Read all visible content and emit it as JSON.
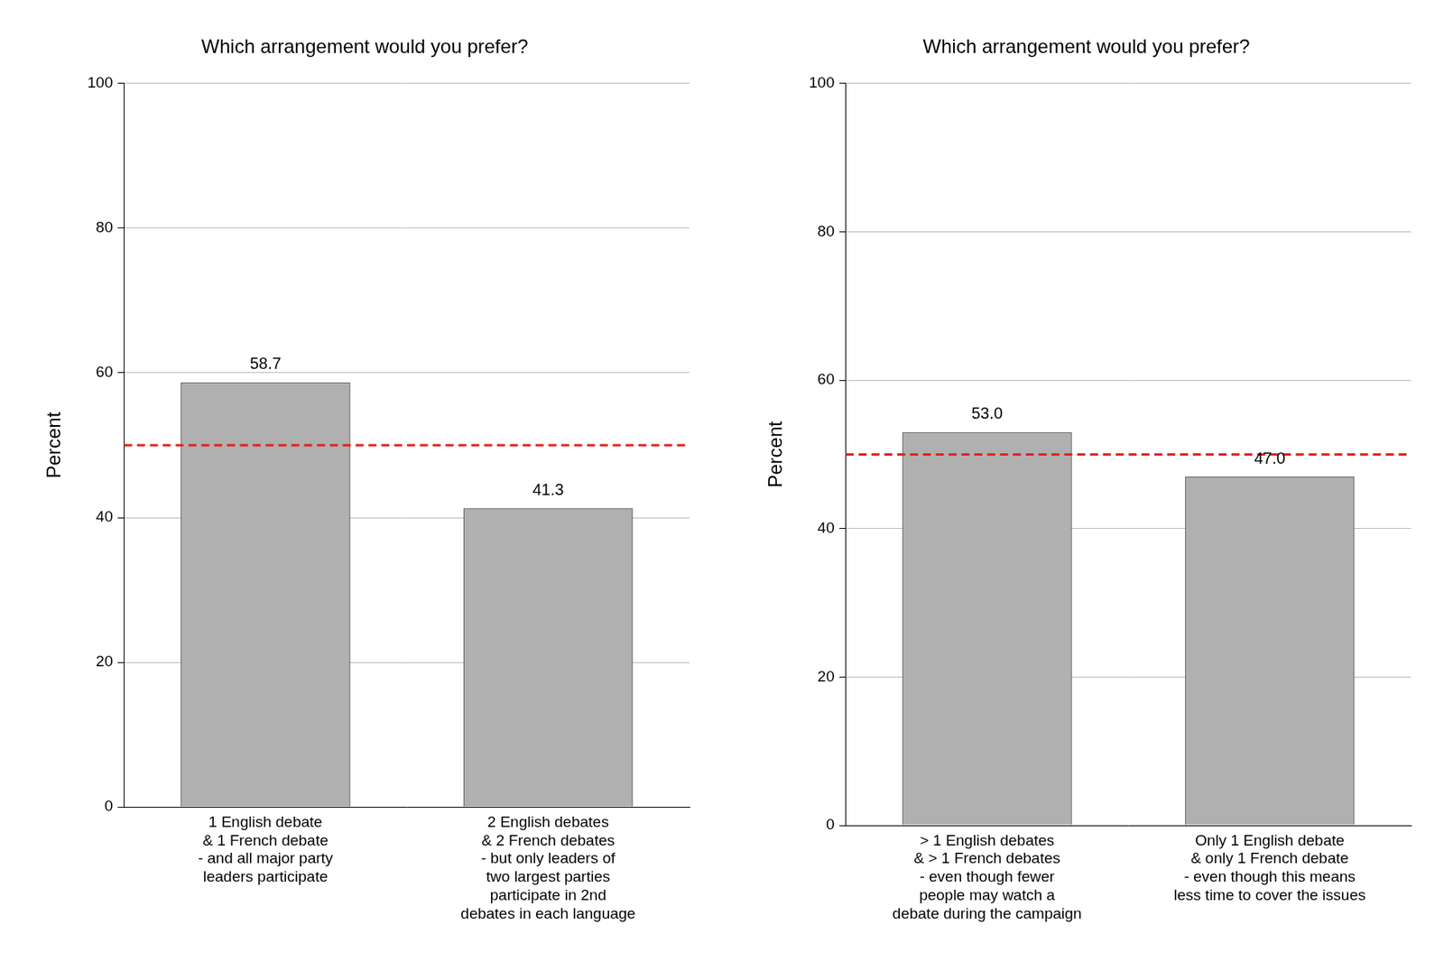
{
  "chart_data": [
    {
      "type": "bar",
      "title": "Which arrangement would you prefer?",
      "y_label": "Percent",
      "categories": [
        [
          "1 English debate",
          "& 1 French debate",
          "- and all major party",
          "leaders participate"
        ],
        [
          "2 English debates",
          "& 2 French debates",
          "- but only leaders of",
          "two largest parties",
          "participate in 2nd",
          "debates in each language"
        ]
      ],
      "values": [
        58.7,
        41.3
      ],
      "color": "#b0b0b0",
      "ylim": [
        0,
        100
      ],
      "yticks": [
        0,
        20,
        40,
        60,
        80,
        100
      ],
      "grid": true,
      "data_labels": true,
      "reference_line": 50
    },
    {
      "type": "bar",
      "title": "Which arrangement would you prefer?",
      "y_label": "Percent",
      "categories": [
        [
          "> 1 English debates",
          "& > 1 French debates",
          "- even though fewer",
          "people may watch a",
          "debate during the campaign"
        ],
        [
          "Only 1 English debate",
          "& only 1 French debate",
          "- even though this means",
          "less time to cover the issues"
        ]
      ],
      "values": [
        53.0,
        47.0
      ],
      "value_labels": [
        "53.0",
        "47.0"
      ],
      "color": "#b0b0b0",
      "ylim": [
        0,
        100
      ],
      "yticks": [
        0,
        20,
        40,
        60,
        80,
        100
      ],
      "grid": true,
      "data_labels": true,
      "reference_line": 50
    }
  ]
}
